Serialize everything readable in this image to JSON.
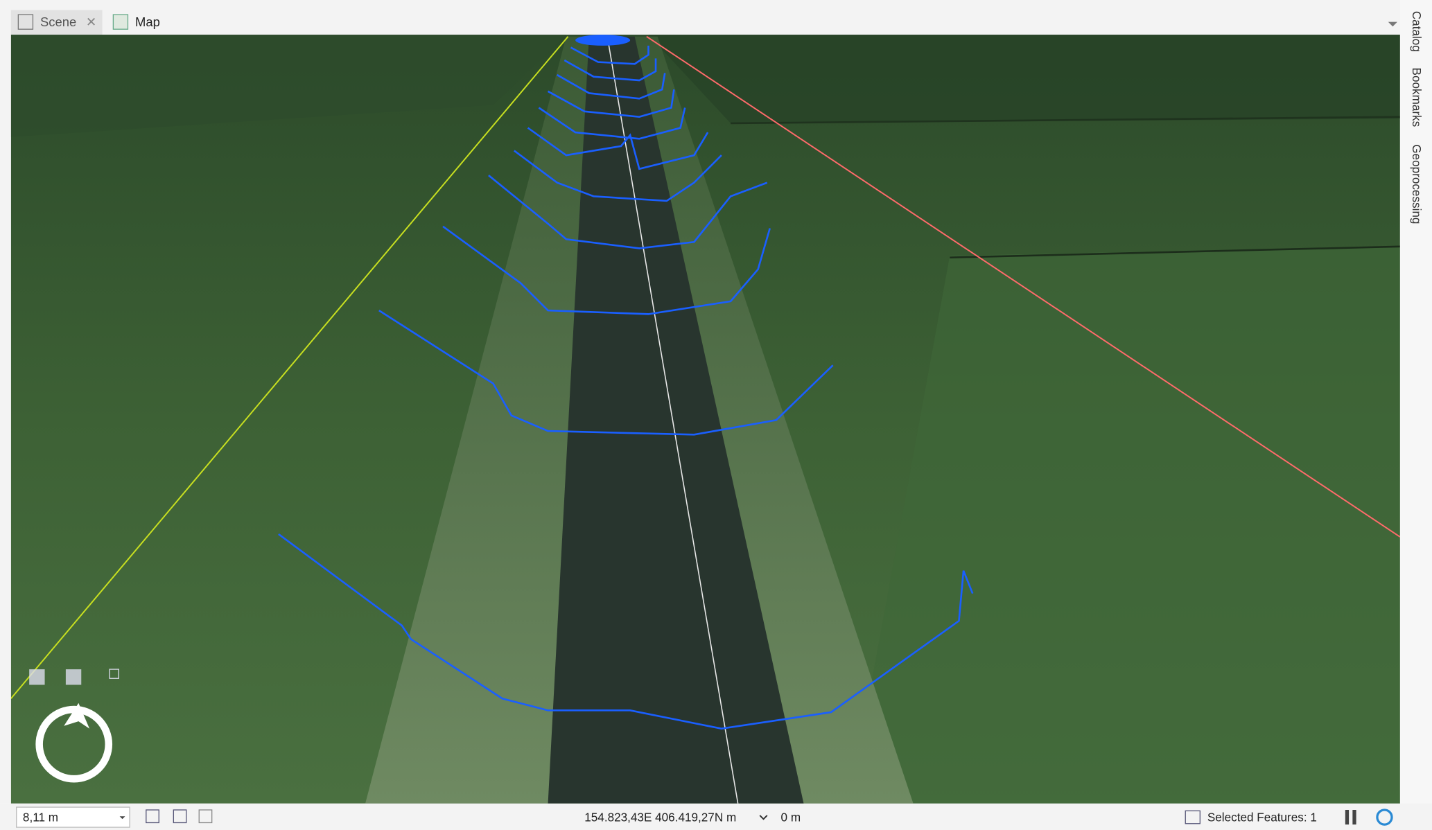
{
  "tabs": [
    {
      "label": "Scene"
    },
    {
      "label": "Map"
    }
  ],
  "side_panel": [
    "Catalog",
    "Bookmarks",
    "Geoprocessing"
  ],
  "status_bar": {
    "scale": "8,11 m",
    "coordinates": "154.823,43E 406.419,27N m",
    "elevation": "0 m",
    "selected_features": "Selected Features: 1"
  }
}
